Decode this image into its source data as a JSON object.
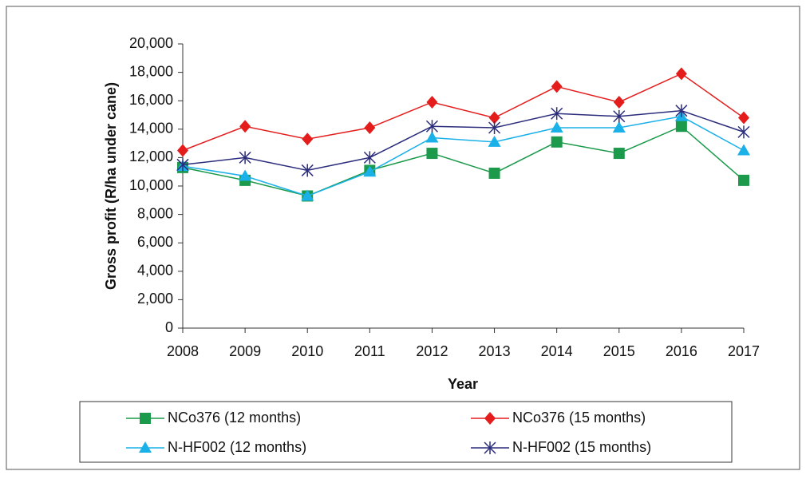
{
  "chart_data": {
    "type": "line",
    "xlabel": "Year",
    "ylabel": "Gross profit (R/ha under cane)",
    "categories": [
      "2008",
      "2009",
      "2010",
      "2011",
      "2012",
      "2013",
      "2014",
      "2015",
      "2016",
      "2017"
    ],
    "series": [
      {
        "name": "NCo376 (12 months)",
        "color": "#1a9a4a",
        "marker": "square",
        "values": [
          11300,
          10400,
          9300,
          11100,
          12300,
          10900,
          13100,
          12300,
          14200,
          10400
        ]
      },
      {
        "name": "NCo376 (15 months)",
        "color": "#e41c1c",
        "marker": "diamond",
        "values": [
          12500,
          14200,
          13300,
          14100,
          15900,
          14800,
          17000,
          15900,
          17900,
          14800
        ]
      },
      {
        "name": "N-HF002 (12 months)",
        "color": "#1ab0e8",
        "marker": "triangle",
        "values": [
          11400,
          10700,
          9300,
          11000,
          13400,
          13100,
          14100,
          14100,
          14900,
          12500
        ]
      },
      {
        "name": "N-HF002 (15 months)",
        "color": "#2b2c7c",
        "marker": "asterisk",
        "values": [
          11500,
          12000,
          11100,
          12000,
          14200,
          14100,
          15100,
          14900,
          15300,
          13800
        ]
      }
    ],
    "ylim": [
      0,
      20000
    ],
    "yticks": [
      0,
      {
        "value": 2000,
        "label": "2,000"
      },
      {
        "value": 4000,
        "label": "4,000"
      },
      {
        "value": 6000,
        "label": "6,000"
      },
      {
        "value": 8000,
        "label": "8,000"
      },
      {
        "value": 10000,
        "label": "10,000"
      },
      {
        "value": 12000,
        "label": "12,000"
      },
      {
        "value": 14000,
        "label": "14,000"
      },
      {
        "value": 16000,
        "label": "16,000"
      },
      {
        "value": 18000,
        "label": "18,000"
      },
      {
        "value": 20000,
        "label": "20,000"
      }
    ],
    "grid": false,
    "legend": "bottom"
  }
}
